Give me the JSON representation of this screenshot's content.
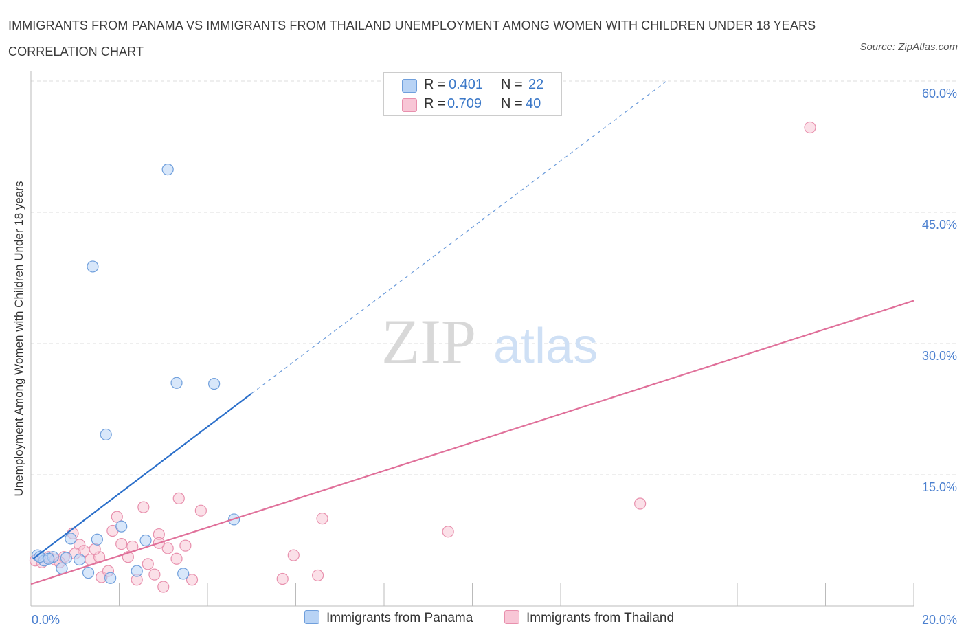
{
  "title": "IMMIGRANTS FROM PANAMA VS IMMIGRANTS FROM THAILAND UNEMPLOYMENT AMONG WOMEN WITH CHILDREN UNDER 18 YEARS CORRELATION CHART",
  "source": "Source: ZipAtlas.com",
  "watermark": {
    "zip": "ZIP",
    "atlas": "atlas"
  },
  "legend": {
    "r_label": "R =",
    "n_label": "N =",
    "panama": {
      "r": "0.401",
      "n": "22"
    },
    "thailand": {
      "r": "0.709",
      "n": "40"
    }
  },
  "colors": {
    "panama_fill": "#b8d3f5",
    "panama_stroke": "#6f9fdc",
    "panama_line": "#2b6fca",
    "thailand_fill": "#f8c6d6",
    "thailand_stroke": "#e890ad",
    "thailand_line": "#e0709a",
    "axis_text": "#4a7fcf"
  },
  "chart_data": {
    "type": "scatter",
    "title": "IMMIGRANTS FROM PANAMA VS IMMIGRANTS FROM THAILAND UNEMPLOYMENT AMONG WOMEN WITH CHILDREN UNDER 18 YEARS CORRELATION CHART",
    "xlabel": "",
    "ylabel": "Unemployment Among Women with Children Under 18 years",
    "xlim": [
      0,
      20
    ],
    "ylim": [
      0,
      60
    ],
    "x_tick_labels": [
      "0.0%",
      "20.0%"
    ],
    "y_ticks": [
      15,
      30,
      45,
      60
    ],
    "y_tick_labels": [
      "15.0%",
      "30.0%",
      "45.0%",
      "60.0%"
    ],
    "grid": true,
    "legend_position": "top-center",
    "series": [
      {
        "name": "Immigrants from Panama",
        "points": [
          [
            0.15,
            5.8
          ],
          [
            0.3,
            5.2
          ],
          [
            0.5,
            5.6
          ],
          [
            0.7,
            4.3
          ],
          [
            0.8,
            5.5
          ],
          [
            0.9,
            7.7
          ],
          [
            1.1,
            5.3
          ],
          [
            1.3,
            3.8
          ],
          [
            1.4,
            38.8
          ],
          [
            1.5,
            7.6
          ],
          [
            1.7,
            19.6
          ],
          [
            1.8,
            3.2
          ],
          [
            2.05,
            9.1
          ],
          [
            2.4,
            4.0
          ],
          [
            2.6,
            7.5
          ],
          [
            3.1,
            49.9
          ],
          [
            3.3,
            25.5
          ],
          [
            3.45,
            3.7
          ],
          [
            4.15,
            25.4
          ],
          [
            4.6,
            9.9
          ],
          [
            0.2,
            5.6
          ],
          [
            0.4,
            5.4
          ]
        ],
        "trend": {
          "x0": 0.05,
          "y0": 5.4,
          "x1": 5.0,
          "y1": 24.3,
          "dashed_to": [
            14.4,
            60.0
          ]
        }
      },
      {
        "name": "Immigrants from Thailand",
        "points": [
          [
            0.1,
            5.2
          ],
          [
            0.25,
            5.0
          ],
          [
            0.4,
            5.6
          ],
          [
            0.55,
            5.3
          ],
          [
            0.75,
            5.6
          ],
          [
            0.95,
            8.3
          ],
          [
            1.1,
            7.0
          ],
          [
            1.2,
            6.3
          ],
          [
            1.35,
            5.3
          ],
          [
            1.55,
            5.6
          ],
          [
            1.6,
            3.3
          ],
          [
            1.75,
            4.0
          ],
          [
            1.85,
            8.6
          ],
          [
            1.95,
            10.2
          ],
          [
            2.05,
            7.1
          ],
          [
            2.2,
            5.6
          ],
          [
            2.3,
            6.8
          ],
          [
            2.4,
            3.0
          ],
          [
            2.55,
            11.3
          ],
          [
            2.65,
            4.8
          ],
          [
            2.8,
            3.6
          ],
          [
            2.9,
            8.2
          ],
          [
            3.0,
            2.2
          ],
          [
            3.1,
            6.6
          ],
          [
            3.3,
            5.4
          ],
          [
            3.35,
            12.3
          ],
          [
            3.5,
            6.9
          ],
          [
            3.65,
            3.0
          ],
          [
            3.85,
            10.9
          ],
          [
            5.7,
            3.1
          ],
          [
            5.95,
            5.8
          ],
          [
            6.5,
            3.5
          ],
          [
            6.6,
            10.0
          ],
          [
            9.45,
            8.5
          ],
          [
            13.8,
            11.7
          ],
          [
            17.65,
            54.7
          ],
          [
            1.45,
            6.5
          ],
          [
            0.65,
            5.0
          ],
          [
            1.0,
            6.0
          ],
          [
            2.9,
            7.2
          ]
        ],
        "trend": {
          "x0": 0.0,
          "y0": 2.5,
          "x1": 20.0,
          "y1": 34.9
        }
      }
    ]
  },
  "bottom_legend": {
    "panama": "Immigrants from Panama",
    "thailand": "Immigrants from Thailand"
  }
}
